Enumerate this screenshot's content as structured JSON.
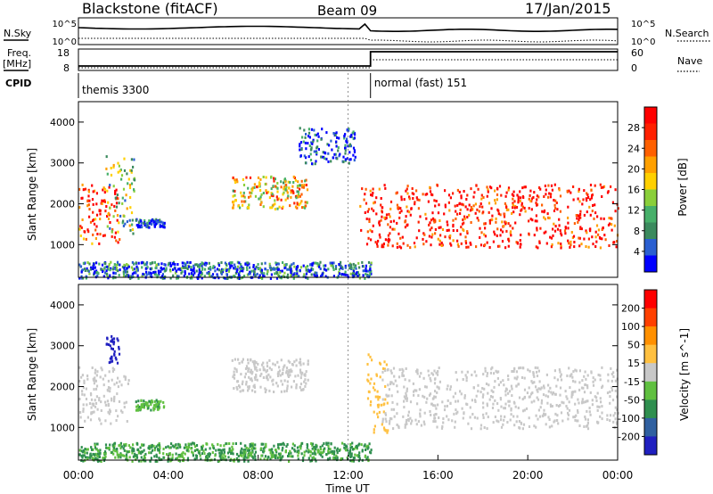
{
  "header": {
    "station": "Blackstone (fitACF)",
    "beam": "Beam 09",
    "date": "17/Jan/2015"
  },
  "strip": {
    "nsky_label": "N.Sky",
    "nsky_ticks": [
      "10^5",
      "10^0"
    ],
    "nsearch_label": "N.Search",
    "nsearch_ticks": [
      "10^5",
      "10^0"
    ],
    "freq_label": "Freq.",
    "freq_unit": "[MHz]",
    "freq_ticks": [
      "18",
      "8"
    ],
    "nave_label": "Nave",
    "nave_ticks": [
      "60",
      "0"
    ],
    "cpid_label": "CPID",
    "cpid_segments": [
      {
        "label": "themis 3300",
        "start_hour": 0,
        "end_hour": 13
      },
      {
        "label": "normal (fast) 151",
        "start_hour": 13,
        "end_hour": 24
      }
    ],
    "dotted_marker_hour": 12
  },
  "chart_data": [
    {
      "type": "heatmap",
      "panel": "power",
      "title": "",
      "xlabel": "",
      "ylabel": "Slant Range [km]",
      "xlim_hours": [
        0,
        24
      ],
      "ylim_km": [
        200,
        4500
      ],
      "yticks": [
        "4000",
        "3000",
        "2000",
        "1000"
      ],
      "colorbar": {
        "label": "Power [dB]",
        "ticks": [
          "28",
          "24",
          "20",
          "16",
          "12",
          "8",
          "4"
        ],
        "colors": [
          "#0000ff",
          "#2a5fd1",
          "#3b8a5e",
          "#47b06a",
          "#8acf3a",
          "#ffd000",
          "#ffa000",
          "#ff6000",
          "#ff2000",
          "#ff0000"
        ]
      },
      "regions": [
        {
          "name": "early-band",
          "t0": 0.0,
          "t1": 1.8,
          "r_low": 1050,
          "r_high": 2500,
          "value": 24
        },
        {
          "name": "early-rise",
          "t0": 1.2,
          "t1": 2.5,
          "r_low": 1300,
          "r_high": 3200,
          "value": 14
        },
        {
          "name": "post-2h-patch",
          "t0": 2.5,
          "t1": 3.8,
          "r_low": 1450,
          "r_high": 1650,
          "value": 6
        },
        {
          "name": "morning-arc",
          "t0": 6.8,
          "t1": 10.2,
          "r_low": 1900,
          "r_high": 2700,
          "value": 18
        },
        {
          "name": "pre-noon-high",
          "t0": 9.8,
          "t1": 12.3,
          "r_low": 3000,
          "r_high": 3900,
          "value": 6
        },
        {
          "name": "midday-main",
          "t0": 12.5,
          "t1": 24.0,
          "r_low": 950,
          "r_high": 2500,
          "value": 26
        },
        {
          "name": "ground-near",
          "t0": 0.0,
          "t1": 13.0,
          "r_low": 200,
          "r_high": 600,
          "value": 8
        }
      ]
    },
    {
      "type": "heatmap",
      "panel": "velocity",
      "title": "",
      "xlabel": "Time UT",
      "ylabel": "Slant Range [km]",
      "xlim_hours": [
        0,
        24
      ],
      "ylim_km": [
        200,
        4500
      ],
      "yticks": [
        "4000",
        "3000",
        "2000",
        "1000"
      ],
      "xticks": [
        "00:00",
        "04:00",
        "08:00",
        "12:00",
        "16:00",
        "20:00",
        "00:00"
      ],
      "colorbar": {
        "label": "Velocity [m s^-1]",
        "ticks": [
          "200",
          "100",
          "50",
          "15",
          "-15",
          "-50",
          "-100",
          "-200"
        ],
        "colors": [
          "#2020c0",
          "#3060a0",
          "#2f8f4f",
          "#60c040",
          "#c8c8c8",
          "#ffc040",
          "#ff9000",
          "#ff4000",
          "#ff0000"
        ]
      },
      "regions": [
        {
          "name": "early-ground",
          "t0": 0.0,
          "t1": 2.2,
          "r_low": 1100,
          "r_high": 2500,
          "value": 0
        },
        {
          "name": "early-red",
          "t0": 1.2,
          "t1": 1.8,
          "r_low": 2600,
          "r_high": 3300,
          "value": -180
        },
        {
          "name": "orange-patch",
          "t0": 2.5,
          "t1": 3.8,
          "r_low": 1450,
          "r_high": 1700,
          "value": -60
        },
        {
          "name": "morning-arc",
          "t0": 6.8,
          "t1": 10.2,
          "r_low": 1900,
          "r_high": 2700,
          "value": 0
        },
        {
          "name": "post-noon-green",
          "t0": 12.8,
          "t1": 13.8,
          "r_low": 900,
          "r_high": 2900,
          "value": 40
        },
        {
          "name": "midday-main",
          "t0": 13.5,
          "t1": 24.0,
          "r_low": 1000,
          "r_high": 2500,
          "value": 0
        },
        {
          "name": "ground-near",
          "t0": 0.0,
          "t1": 13.0,
          "r_low": 200,
          "r_high": 650,
          "value": -70
        }
      ]
    }
  ]
}
